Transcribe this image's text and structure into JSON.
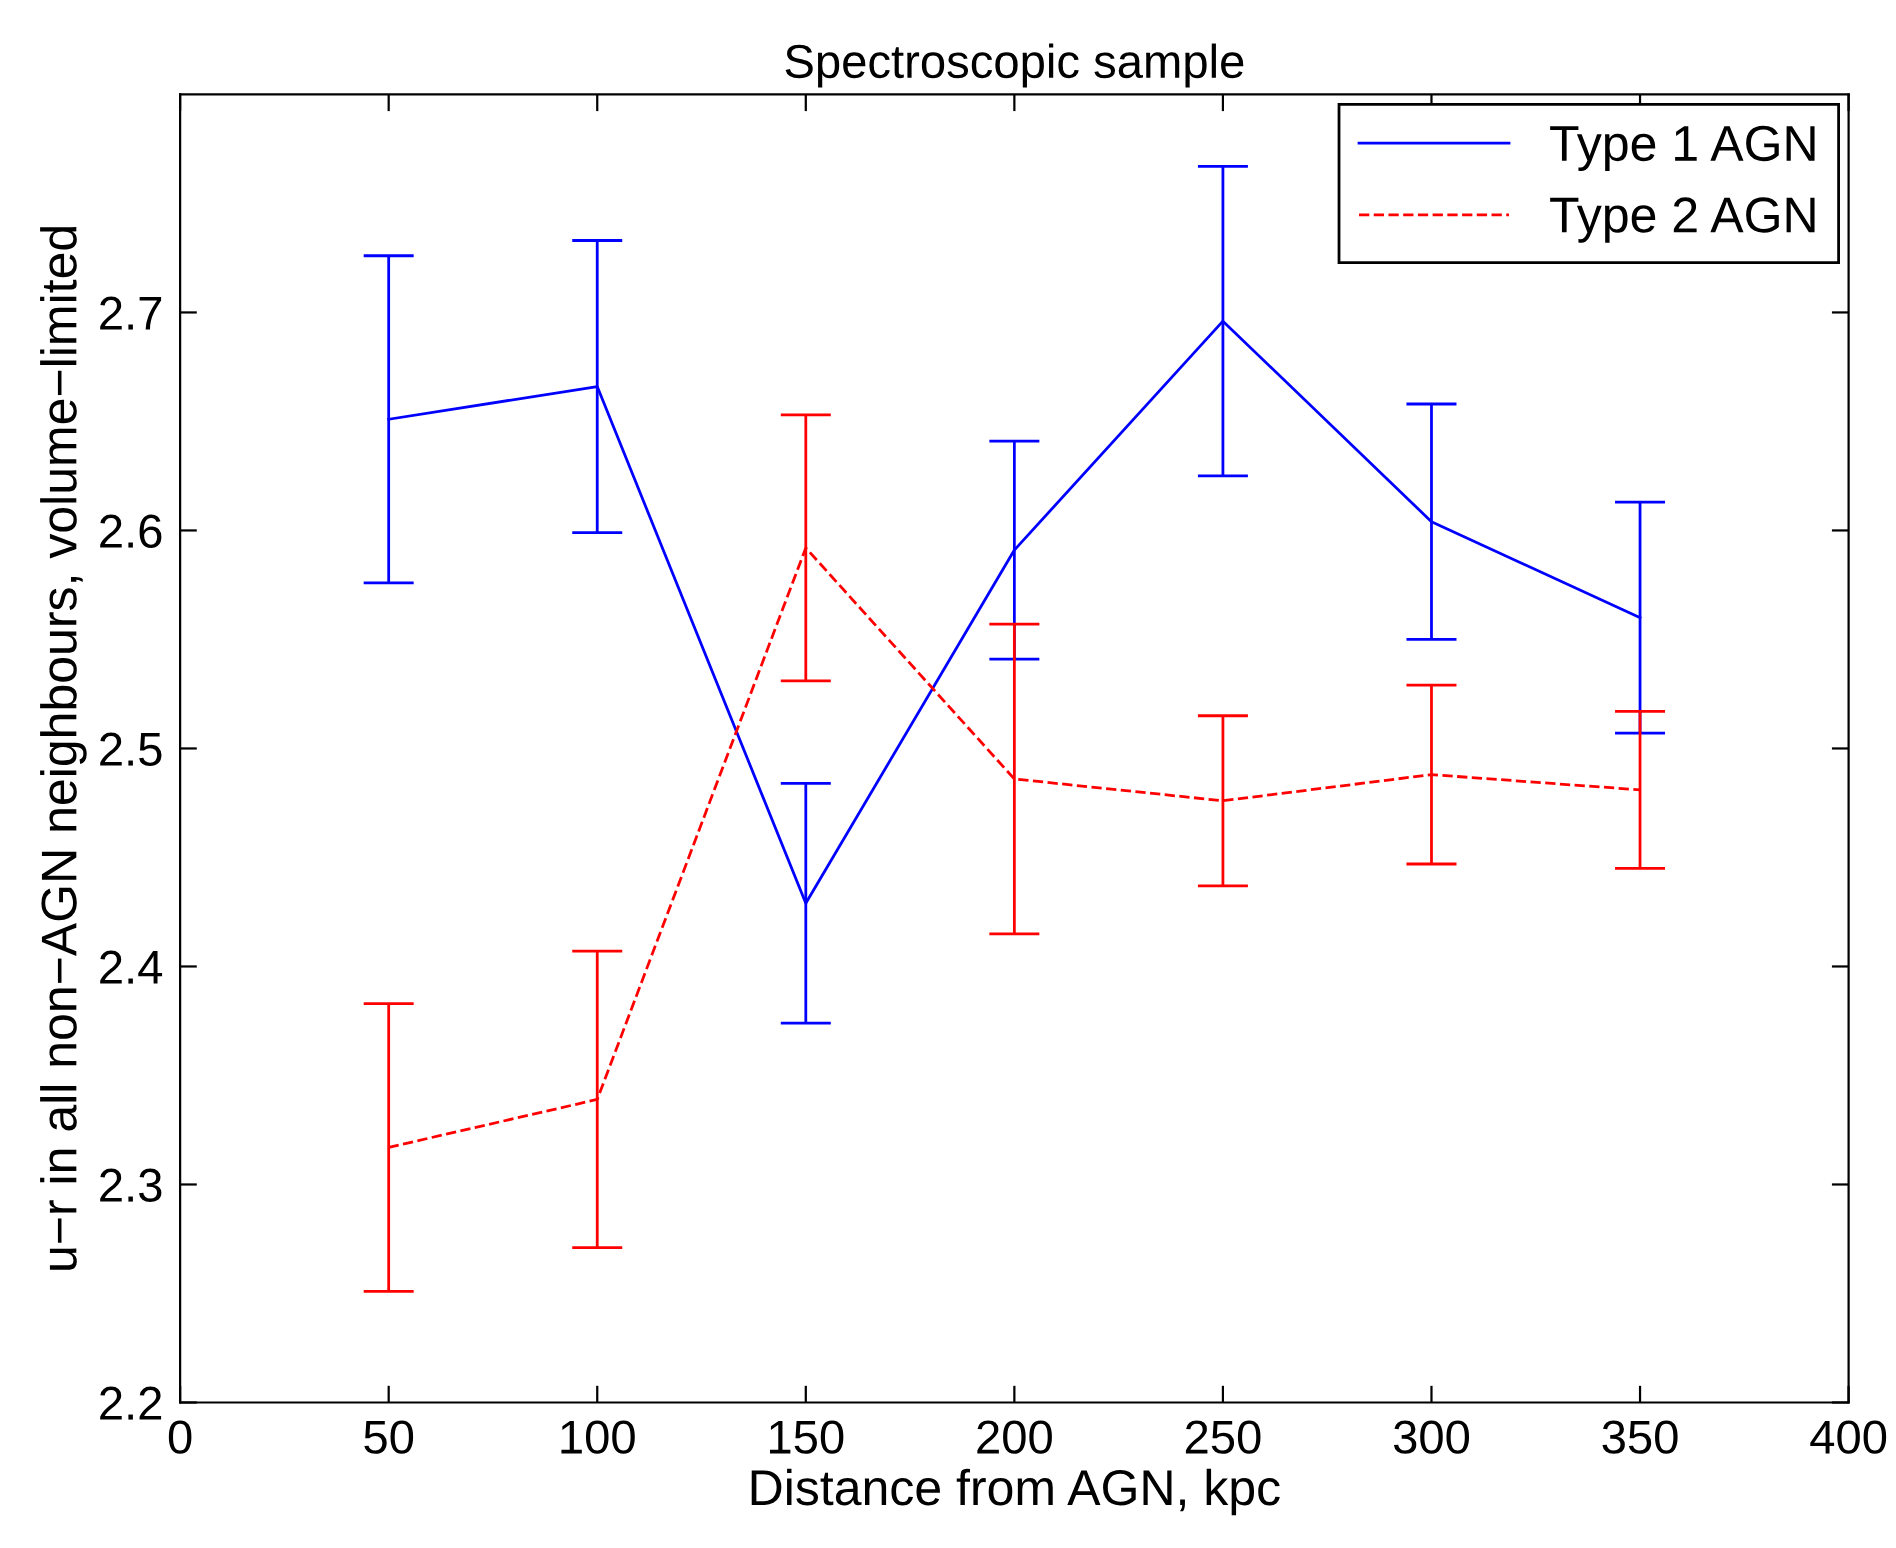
{
  "chart_data": {
    "type": "line",
    "title": "Spectroscopic sample",
    "xlabel": "Distance from AGN, kpc",
    "ylabel": "u−r in all non−AGN neighbours, volume−limited",
    "x": [
      50,
      100,
      150,
      200,
      250,
      300,
      350
    ],
    "series": [
      {
        "name": "Type 1 AGN",
        "color": "#0000ff",
        "line_style": "solid",
        "values": [
          2.651,
          2.666,
          2.429,
          2.591,
          2.696,
          2.604,
          2.56
        ],
        "errors": [
          0.075,
          0.067,
          0.055,
          0.05,
          0.071,
          0.054,
          0.053
        ]
      },
      {
        "name": "Type 2 AGN",
        "color": "#ff0000",
        "line_style": "dashed",
        "values": [
          2.317,
          2.339,
          2.592,
          2.486,
          2.476,
          2.488,
          2.481
        ],
        "errors": [
          0.066,
          0.068,
          0.061,
          0.071,
          0.039,
          0.041,
          0.036
        ]
      }
    ],
    "xlim": [
      0,
      400
    ],
    "xticks": [
      0,
      50,
      100,
      150,
      200,
      250,
      300,
      350,
      400
    ],
    "ylim": [
      2.2,
      2.8
    ],
    "yticks": [
      2.2,
      2.3,
      2.4,
      2.5,
      2.6,
      2.7
    ],
    "legend": "top right",
    "grid": false
  }
}
